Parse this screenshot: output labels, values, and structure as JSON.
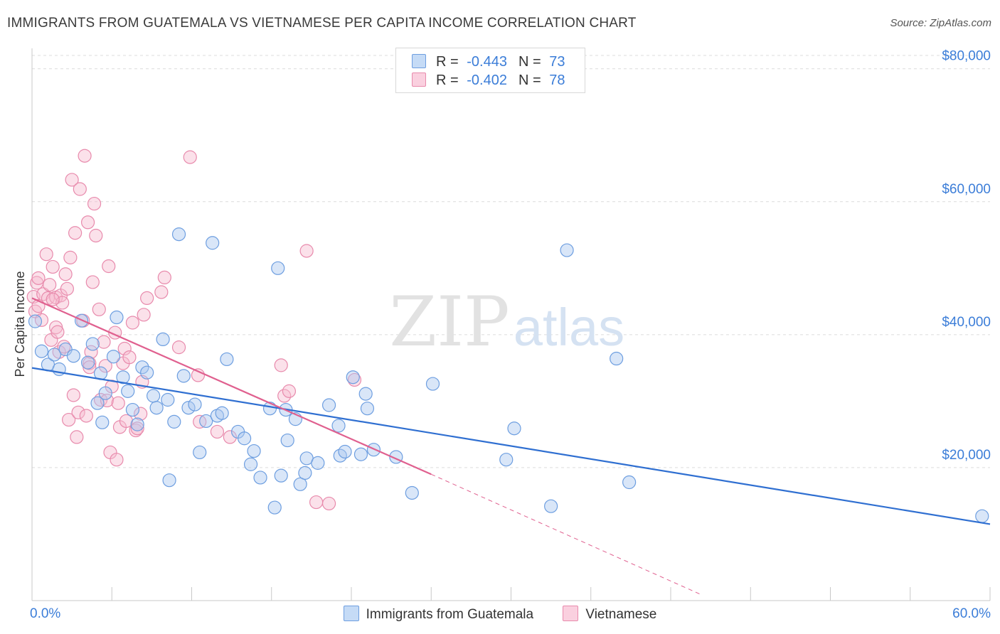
{
  "header": {
    "title": "IMMIGRANTS FROM GUATEMALA VS VIETNAMESE PER CAPITA INCOME CORRELATION CHART",
    "source": "Source: ZipAtlas.com"
  },
  "watermark": {
    "zip": "ZIP",
    "atlas": "atlas"
  },
  "colors": {
    "blue_fill": "#aac8f0",
    "blue_stroke": "#6d9ee0",
    "blue_line": "#2f6fd1",
    "pink_fill": "#f6bcd0",
    "pink_stroke": "#e88aac",
    "pink_line": "#e0608f",
    "axis_label": "#3b7dd8",
    "grid": "#dcdcdc"
  },
  "legend": {
    "blue": {
      "r_label": "R = ",
      "r_value": "-0.443",
      "n_label": "N = ",
      "n_value": "73"
    },
    "pink": {
      "r_label": "R = ",
      "r_value": "-0.402",
      "n_label": "N = ",
      "n_value": "78"
    }
  },
  "chart_data": {
    "type": "scatter",
    "title": "IMMIGRANTS FROM GUATEMALA VS VIETNAMESE PER CAPITA INCOME CORRELATION CHART",
    "xlabel": "",
    "ylabel": "Per Capita Income",
    "xlim": [
      0,
      60
    ],
    "ylim": [
      0,
      82000
    ],
    "x_tick_labels": {
      "min": "0.0%",
      "max": "60.0%"
    },
    "y_ticks": [
      {
        "value": 20000,
        "label": "$20,000"
      },
      {
        "value": 40000,
        "label": "$40,000"
      },
      {
        "value": 60000,
        "label": "$60,000"
      },
      {
        "value": 80000,
        "label": "$80,000"
      }
    ],
    "grid": true,
    "series": [
      {
        "name": "Immigrants from Guatemala",
        "color": "#aac8f0",
        "trend": {
          "x": [
            0,
            60
          ],
          "y": [
            35000,
            11500
          ]
        },
        "points": [
          [
            0.2,
            42000
          ],
          [
            0.6,
            37500
          ],
          [
            1,
            35500
          ],
          [
            1.4,
            37000
          ],
          [
            1.7,
            34800
          ],
          [
            2.1,
            37800
          ],
          [
            2.6,
            36800
          ],
          [
            3.1,
            42100
          ],
          [
            3.5,
            35800
          ],
          [
            3.8,
            38600
          ],
          [
            4.1,
            29700
          ],
          [
            4.3,
            34200
          ],
          [
            4.6,
            31200
          ],
          [
            5.1,
            36700
          ],
          [
            5.3,
            42600
          ],
          [
            5.7,
            33600
          ],
          [
            6,
            31500
          ],
          [
            6.3,
            28700
          ],
          [
            6.6,
            26500
          ],
          [
            6.9,
            35100
          ],
          [
            7.2,
            34300
          ],
          [
            7.6,
            30800
          ],
          [
            7.8,
            29000
          ],
          [
            8.2,
            39300
          ],
          [
            8.6,
            18100
          ],
          [
            8.9,
            26900
          ],
          [
            9.2,
            55100
          ],
          [
            9.5,
            33800
          ],
          [
            9.8,
            29000
          ],
          [
            10.2,
            29500
          ],
          [
            10.5,
            22300
          ],
          [
            10.9,
            27000
          ],
          [
            11.3,
            53800
          ],
          [
            11.6,
            27800
          ],
          [
            11.9,
            28200
          ],
          [
            12.2,
            36300
          ],
          [
            12.9,
            25400
          ],
          [
            13.3,
            24400
          ],
          [
            13.7,
            20500
          ],
          [
            13.9,
            22500
          ],
          [
            14.3,
            18500
          ],
          [
            14.9,
            28900
          ],
          [
            15.2,
            14000
          ],
          [
            15.4,
            50000
          ],
          [
            15.6,
            18800
          ],
          [
            15.9,
            28700
          ],
          [
            16.5,
            27300
          ],
          [
            16.8,
            17500
          ],
          [
            17.1,
            19200
          ],
          [
            17.2,
            21400
          ],
          [
            17.9,
            20700
          ],
          [
            18.6,
            29400
          ],
          [
            19.2,
            26300
          ],
          [
            19.3,
            21800
          ],
          [
            19.6,
            22400
          ],
          [
            20.1,
            33600
          ],
          [
            20.6,
            22000
          ],
          [
            20.9,
            31100
          ],
          [
            21.4,
            22700
          ],
          [
            22.8,
            21600
          ],
          [
            23.8,
            16200
          ],
          [
            25.1,
            32600
          ],
          [
            29.7,
            21200
          ],
          [
            30.2,
            25900
          ],
          [
            32.5,
            14200
          ],
          [
            33.5,
            52700
          ],
          [
            36.6,
            36400
          ],
          [
            37.4,
            17800
          ],
          [
            59.5,
            12700
          ],
          [
            4.4,
            26800
          ],
          [
            8.5,
            30200
          ],
          [
            16,
            24100
          ],
          [
            21,
            28900
          ]
        ]
      },
      {
        "name": "Vietnamese",
        "color": "#f6bcd0",
        "trend": {
          "x": [
            0,
            25
          ],
          "y": [
            45500,
            19000
          ]
        },
        "trend_extension": {
          "x": [
            25,
            42
          ],
          "y": [
            19000,
            800
          ]
        },
        "points": [
          [
            0.1,
            45700
          ],
          [
            0.2,
            43500
          ],
          [
            0.3,
            47800
          ],
          [
            0.4,
            48500
          ],
          [
            0.4,
            44300
          ],
          [
            0.6,
            42200
          ],
          [
            0.7,
            46100
          ],
          [
            0.9,
            52100
          ],
          [
            1,
            45500
          ],
          [
            1.1,
            47500
          ],
          [
            1.2,
            39200
          ],
          [
            1.3,
            50200
          ],
          [
            1.5,
            45600
          ],
          [
            1.5,
            41100
          ],
          [
            1.6,
            40400
          ],
          [
            1.7,
            37400
          ],
          [
            1.8,
            45900
          ],
          [
            1.9,
            44800
          ],
          [
            2,
            38200
          ],
          [
            2.1,
            49100
          ],
          [
            2.2,
            46900
          ],
          [
            2.3,
            27200
          ],
          [
            2.4,
            51600
          ],
          [
            2.5,
            63300
          ],
          [
            2.6,
            30900
          ],
          [
            2.7,
            55300
          ],
          [
            2.8,
            24600
          ],
          [
            2.9,
            28300
          ],
          [
            3,
            61900
          ],
          [
            3.2,
            42100
          ],
          [
            3.3,
            66900
          ],
          [
            3.4,
            27800
          ],
          [
            3.5,
            56900
          ],
          [
            3.6,
            35700
          ],
          [
            3.7,
            37400
          ],
          [
            3.8,
            47900
          ],
          [
            3.9,
            59700
          ],
          [
            4,
            54900
          ],
          [
            4.2,
            43800
          ],
          [
            4.3,
            30200
          ],
          [
            4.5,
            38900
          ],
          [
            4.6,
            35300
          ],
          [
            4.7,
            30100
          ],
          [
            4.8,
            50300
          ],
          [
            4.9,
            22300
          ],
          [
            5,
            32200
          ],
          [
            5.2,
            40300
          ],
          [
            5.3,
            21200
          ],
          [
            5.4,
            29700
          ],
          [
            5.5,
            26100
          ],
          [
            5.7,
            35700
          ],
          [
            5.8,
            37900
          ],
          [
            5.9,
            27000
          ],
          [
            6.1,
            36600
          ],
          [
            6.3,
            41800
          ],
          [
            6.5,
            25600
          ],
          [
            6.6,
            25900
          ],
          [
            6.8,
            28100
          ],
          [
            6.9,
            32900
          ],
          [
            7,
            43000
          ],
          [
            7.2,
            45500
          ],
          [
            8.1,
            46400
          ],
          [
            8.3,
            48600
          ],
          [
            9.2,
            38100
          ],
          [
            9.9,
            66700
          ],
          [
            10.4,
            33900
          ],
          [
            10.5,
            26900
          ],
          [
            11.6,
            25400
          ],
          [
            12.4,
            24600
          ],
          [
            15.6,
            35400
          ],
          [
            15.8,
            30800
          ],
          [
            16.1,
            31500
          ],
          [
            17.2,
            52600
          ],
          [
            17.8,
            14800
          ],
          [
            18.6,
            14600
          ],
          [
            20.2,
            33200
          ],
          [
            1.3,
            45300
          ],
          [
            3.6,
            35100
          ]
        ]
      }
    ]
  },
  "bottom_legend": {
    "blue_label": "Immigrants from Guatemala",
    "pink_label": "Vietnamese"
  }
}
